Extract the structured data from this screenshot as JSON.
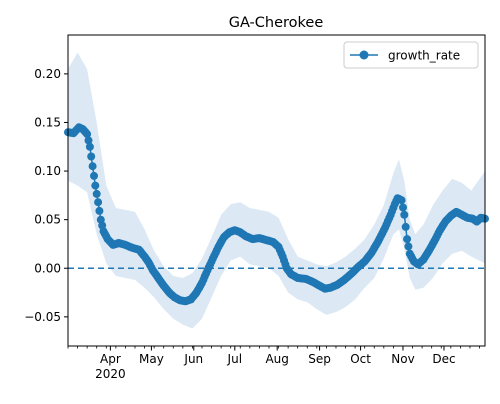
{
  "chart_data": {
    "type": "line",
    "title": "GA-Cherokee",
    "xlabel": "",
    "ylabel": "",
    "xlim": [
      "2020-03-01",
      "2020-12-31"
    ],
    "ylim": [
      -0.08,
      0.24
    ],
    "y_ticks": [
      -0.05,
      0.0,
      0.05,
      0.1,
      0.15,
      0.2
    ],
    "y_tick_labels": [
      "−0.05",
      "0.00",
      "0.05",
      "0.10",
      "0.15",
      "0.20"
    ],
    "x_ticks": [
      {
        "date": "2020-04-01",
        "label": "Apr",
        "sublabel": "2020"
      },
      {
        "date": "2020-05-01",
        "label": "May",
        "sublabel": ""
      },
      {
        "date": "2020-06-01",
        "label": "Jun",
        "sublabel": ""
      },
      {
        "date": "2020-07-01",
        "label": "Jul",
        "sublabel": ""
      },
      {
        "date": "2020-08-01",
        "label": "Aug",
        "sublabel": ""
      },
      {
        "date": "2020-09-01",
        "label": "Sep",
        "sublabel": ""
      },
      {
        "date": "2020-10-01",
        "label": "Oct",
        "sublabel": ""
      },
      {
        "date": "2020-11-01",
        "label": "Nov",
        "sublabel": ""
      },
      {
        "date": "2020-12-01",
        "label": "Dec",
        "sublabel": ""
      }
    ],
    "legend": {
      "position": "upper-right",
      "label": "growth_rate"
    },
    "reference_line": {
      "y": 0.0,
      "style": "dashed"
    },
    "colors": {
      "line": "#1f77b4",
      "band": "#dce9f5"
    },
    "series": [
      {
        "name": "growth_rate",
        "points": [
          [
            "2020-03-01",
            0.14
          ],
          [
            "2020-03-05",
            0.139
          ],
          [
            "2020-03-09",
            0.145
          ],
          [
            "2020-03-12",
            0.143
          ],
          [
            "2020-03-15",
            0.138
          ],
          [
            "2020-03-17",
            0.125
          ],
          [
            "2020-03-19",
            0.105
          ],
          [
            "2020-03-21",
            0.085
          ],
          [
            "2020-03-23",
            0.068
          ],
          [
            "2020-03-25",
            0.05
          ],
          [
            "2020-03-27",
            0.038
          ],
          [
            "2020-03-30",
            0.03
          ],
          [
            "2020-04-03",
            0.024
          ],
          [
            "2020-04-07",
            0.026
          ],
          [
            "2020-04-12",
            0.024
          ],
          [
            "2020-04-17",
            0.021
          ],
          [
            "2020-04-22",
            0.019
          ],
          [
            "2020-04-26",
            0.012
          ],
          [
            "2020-04-29",
            0.006
          ],
          [
            "2020-05-02",
            -0.002
          ],
          [
            "2020-05-06",
            -0.01
          ],
          [
            "2020-05-10",
            -0.018
          ],
          [
            "2020-05-14",
            -0.025
          ],
          [
            "2020-05-18",
            -0.03
          ],
          [
            "2020-05-22",
            -0.033
          ],
          [
            "2020-05-26",
            -0.034
          ],
          [
            "2020-05-30",
            -0.032
          ],
          [
            "2020-06-03",
            -0.025
          ],
          [
            "2020-06-07",
            -0.015
          ],
          [
            "2020-06-11",
            -0.002
          ],
          [
            "2020-06-15",
            0.01
          ],
          [
            "2020-06-19",
            0.022
          ],
          [
            "2020-06-23",
            0.032
          ],
          [
            "2020-06-27",
            0.037
          ],
          [
            "2020-07-01",
            0.039
          ],
          [
            "2020-07-05",
            0.037
          ],
          [
            "2020-07-09",
            0.033
          ],
          [
            "2020-07-14",
            0.03
          ],
          [
            "2020-07-19",
            0.031
          ],
          [
            "2020-07-24",
            0.029
          ],
          [
            "2020-07-29",
            0.027
          ],
          [
            "2020-08-02",
            0.022
          ],
          [
            "2020-08-05",
            0.012
          ],
          [
            "2020-08-08",
            0.0
          ],
          [
            "2020-08-11",
            -0.006
          ],
          [
            "2020-08-16",
            -0.01
          ],
          [
            "2020-08-22",
            -0.011
          ],
          [
            "2020-08-27",
            -0.014
          ],
          [
            "2020-09-01",
            -0.018
          ],
          [
            "2020-09-05",
            -0.021
          ],
          [
            "2020-09-09",
            -0.02
          ],
          [
            "2020-09-14",
            -0.017
          ],
          [
            "2020-09-19",
            -0.012
          ],
          [
            "2020-09-24",
            -0.006
          ],
          [
            "2020-09-29",
            0.001
          ],
          [
            "2020-10-04",
            0.007
          ],
          [
            "2020-10-09",
            0.016
          ],
          [
            "2020-10-14",
            0.028
          ],
          [
            "2020-10-19",
            0.042
          ],
          [
            "2020-10-23",
            0.055
          ],
          [
            "2020-10-26",
            0.066
          ],
          [
            "2020-10-28",
            0.072
          ],
          [
            "2020-10-31",
            0.07
          ],
          [
            "2020-11-02",
            0.055
          ],
          [
            "2020-11-04",
            0.03
          ],
          [
            "2020-11-06",
            0.015
          ],
          [
            "2020-11-09",
            0.007
          ],
          [
            "2020-11-12",
            0.004
          ],
          [
            "2020-11-16",
            0.009
          ],
          [
            "2020-11-20",
            0.018
          ],
          [
            "2020-11-24",
            0.028
          ],
          [
            "2020-11-28",
            0.039
          ],
          [
            "2020-12-02",
            0.048
          ],
          [
            "2020-12-06",
            0.054
          ],
          [
            "2020-12-10",
            0.058
          ],
          [
            "2020-12-14",
            0.055
          ],
          [
            "2020-12-18",
            0.052
          ],
          [
            "2020-12-22",
            0.051
          ],
          [
            "2020-12-25",
            0.048
          ],
          [
            "2020-12-28",
            0.052
          ],
          [
            "2020-12-31",
            0.051
          ]
        ]
      }
    ],
    "band": {
      "upper": [
        [
          "2020-03-01",
          0.205
        ],
        [
          "2020-03-08",
          0.222
        ],
        [
          "2020-03-15",
          0.205
        ],
        [
          "2020-03-22",
          0.15
        ],
        [
          "2020-03-29",
          0.085
        ],
        [
          "2020-04-05",
          0.062
        ],
        [
          "2020-04-12",
          0.06
        ],
        [
          "2020-04-19",
          0.058
        ],
        [
          "2020-04-26",
          0.04
        ],
        [
          "2020-05-03",
          0.018
        ],
        [
          "2020-05-10",
          0.002
        ],
        [
          "2020-05-17",
          -0.008
        ],
        [
          "2020-05-24",
          -0.01
        ],
        [
          "2020-05-31",
          -0.005
        ],
        [
          "2020-06-07",
          0.01
        ],
        [
          "2020-06-14",
          0.032
        ],
        [
          "2020-06-21",
          0.055
        ],
        [
          "2020-06-28",
          0.066
        ],
        [
          "2020-07-05",
          0.068
        ],
        [
          "2020-07-12",
          0.062
        ],
        [
          "2020-07-19",
          0.06
        ],
        [
          "2020-07-26",
          0.058
        ],
        [
          "2020-08-02",
          0.052
        ],
        [
          "2020-08-09",
          0.03
        ],
        [
          "2020-08-16",
          0.012
        ],
        [
          "2020-08-23",
          0.008
        ],
        [
          "2020-08-30",
          0.004
        ],
        [
          "2020-09-06",
          0.002
        ],
        [
          "2020-09-13",
          0.006
        ],
        [
          "2020-09-20",
          0.012
        ],
        [
          "2020-09-27",
          0.02
        ],
        [
          "2020-10-04",
          0.03
        ],
        [
          "2020-10-11",
          0.045
        ],
        [
          "2020-10-18",
          0.065
        ],
        [
          "2020-10-25",
          0.098
        ],
        [
          "2020-10-29",
          0.112
        ],
        [
          "2020-11-02",
          0.09
        ],
        [
          "2020-11-06",
          0.05
        ],
        [
          "2020-11-10",
          0.035
        ],
        [
          "2020-11-16",
          0.045
        ],
        [
          "2020-11-23",
          0.065
        ],
        [
          "2020-11-30",
          0.08
        ],
        [
          "2020-12-07",
          0.092
        ],
        [
          "2020-12-14",
          0.088
        ],
        [
          "2020-12-21",
          0.08
        ],
        [
          "2020-12-31",
          0.1
        ]
      ],
      "lower": [
        [
          "2020-03-01",
          0.09
        ],
        [
          "2020-03-08",
          0.085
        ],
        [
          "2020-03-15",
          0.078
        ],
        [
          "2020-03-22",
          0.035
        ],
        [
          "2020-03-29",
          0.005
        ],
        [
          "2020-04-05",
          -0.008
        ],
        [
          "2020-04-12",
          -0.01
        ],
        [
          "2020-04-19",
          -0.012
        ],
        [
          "2020-04-26",
          -0.02
        ],
        [
          "2020-05-03",
          -0.03
        ],
        [
          "2020-05-10",
          -0.042
        ],
        [
          "2020-05-17",
          -0.052
        ],
        [
          "2020-05-24",
          -0.058
        ],
        [
          "2020-05-31",
          -0.062
        ],
        [
          "2020-06-07",
          -0.052
        ],
        [
          "2020-06-14",
          -0.03
        ],
        [
          "2020-06-21",
          -0.008
        ],
        [
          "2020-06-28",
          0.008
        ],
        [
          "2020-07-05",
          0.012
        ],
        [
          "2020-07-12",
          0.004
        ],
        [
          "2020-07-19",
          0.002
        ],
        [
          "2020-07-26",
          0.0
        ],
        [
          "2020-08-02",
          -0.008
        ],
        [
          "2020-08-09",
          -0.025
        ],
        [
          "2020-08-16",
          -0.032
        ],
        [
          "2020-08-23",
          -0.035
        ],
        [
          "2020-08-30",
          -0.042
        ],
        [
          "2020-09-06",
          -0.048
        ],
        [
          "2020-09-13",
          -0.045
        ],
        [
          "2020-09-20",
          -0.04
        ],
        [
          "2020-09-27",
          -0.032
        ],
        [
          "2020-10-04",
          -0.02
        ],
        [
          "2020-10-11",
          -0.01
        ],
        [
          "2020-10-18",
          0.01
        ],
        [
          "2020-10-25",
          0.035
        ],
        [
          "2020-10-29",
          0.04
        ],
        [
          "2020-11-02",
          0.02
        ],
        [
          "2020-11-06",
          -0.01
        ],
        [
          "2020-11-10",
          -0.022
        ],
        [
          "2020-11-16",
          -0.02
        ],
        [
          "2020-11-23",
          -0.01
        ],
        [
          "2020-11-30",
          0.005
        ],
        [
          "2020-12-07",
          0.015
        ],
        [
          "2020-12-14",
          0.018
        ],
        [
          "2020-12-21",
          0.012
        ],
        [
          "2020-12-31",
          0.005
        ]
      ]
    }
  }
}
